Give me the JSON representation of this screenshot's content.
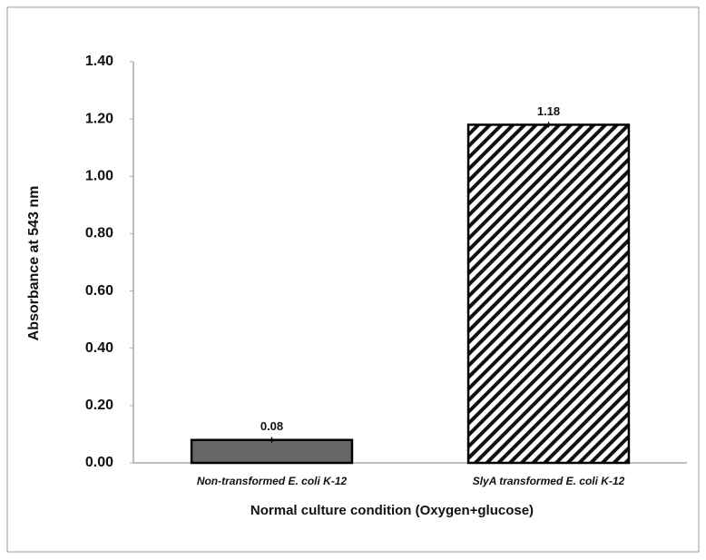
{
  "chart_data": {
    "type": "bar",
    "categories": [
      "Non-transformed E. coli K-12",
      "SlyA transformed E. coli K-12"
    ],
    "values": [
      0.08,
      1.18
    ],
    "errors": [
      0.01,
      0.01
    ],
    "colors": [
      "#666666",
      "#ffffff"
    ],
    "hatches": [
      null,
      "diagonal"
    ],
    "xlabel": "Normal culture condition (Oxygen+glucose)",
    "ylabel": "Absorbance at 543 nm",
    "ylim": [
      0,
      1.4
    ],
    "yticks": [
      {
        "value": 0,
        "label": "0.00"
      },
      {
        "value": 0.2,
        "label": "0.20"
      },
      {
        "value": 0.4,
        "label": "0.40"
      },
      {
        "value": 0.6,
        "label": "0.60"
      },
      {
        "value": 0.8,
        "label": "0.80"
      },
      {
        "value": 1.0,
        "label": "1.00"
      },
      {
        "value": 1.2,
        "label": "1.20"
      },
      {
        "value": 1.4,
        "label": "1.40"
      }
    ],
    "grid": false
  }
}
